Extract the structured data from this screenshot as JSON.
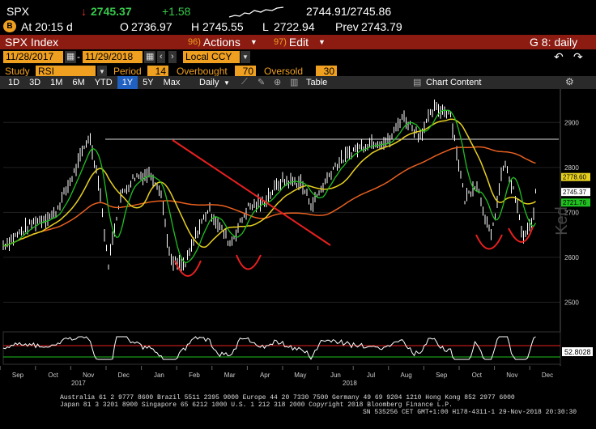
{
  "ticker": {
    "symbol": "SPX",
    "arrow": "↓",
    "last": "2745.37",
    "change": "+1.58",
    "bid_ask": "2744.91/2745.86",
    "time_label": "At 20:15 d",
    "open_label": "O",
    "open": "2736.97",
    "high_label": "H",
    "high": "2745.55",
    "low_label": "L",
    "low": "2722.94",
    "prev_label": "Prev",
    "prev": "2743.79"
  },
  "titlebar": {
    "security": "SPX Index",
    "actions_num": "96)",
    "actions": "Actions",
    "edit_num": "97)",
    "edit": "Edit",
    "page": "G 8: daily"
  },
  "controls": {
    "start_date": "11/28/2017",
    "end_date": "11/29/2018",
    "currency": "Local CCY",
    "study_label": "Study",
    "study": "RSI",
    "period_label": "Period",
    "period": "14",
    "overbought_label": "Overbought",
    "overbought": "70",
    "oversold_label": "Oversold",
    "oversold": "30",
    "table_label": "Table",
    "chart_content": "Chart Content"
  },
  "periods": [
    "1D",
    "3D",
    "1M",
    "6M",
    "YTD",
    "1Y",
    "5Y",
    "Max"
  ],
  "selected_period": "1Y",
  "frequency": "Daily",
  "colors": {
    "price": "#ffffff",
    "ma_short": "#20c020",
    "ma_mid": "#e8d020",
    "ma_long": "#e86020",
    "trend_line": "#e82020",
    "annotation": "#e82020",
    "accent": "#f0a020",
    "titlebar": "#8c1c12"
  },
  "chart_data": {
    "type": "line",
    "x": [
      "2017-11-28",
      "2017-12-08",
      "2017-12-20",
      "2018-01-02",
      "2018-01-10",
      "2018-01-18",
      "2018-01-26",
      "2018-02-02",
      "2018-02-08",
      "2018-02-16",
      "2018-02-26",
      "2018-03-09",
      "2018-03-16",
      "2018-03-23",
      "2018-04-02",
      "2018-04-10",
      "2018-04-18",
      "2018-05-03",
      "2018-05-15",
      "2018-05-25",
      "2018-06-07",
      "2018-06-20",
      "2018-06-28",
      "2018-07-13",
      "2018-07-26",
      "2018-08-08",
      "2018-08-20",
      "2018-08-29",
      "2018-09-10",
      "2018-09-20",
      "2018-10-01",
      "2018-10-11",
      "2018-10-19",
      "2018-10-29",
      "2018-11-07",
      "2018-11-15",
      "2018-11-20",
      "2018-11-26",
      "2018-11-29"
    ],
    "series": [
      {
        "values": [
          2627,
          2651,
          2680,
          2695,
          2748,
          2805,
          2872,
          2762,
          2581,
          2732,
          2779,
          2786,
          2752,
          2588,
          2582,
          2656,
          2708,
          2630,
          2711,
          2721,
          2770,
          2767,
          2716,
          2801,
          2837,
          2857,
          2857,
          2914,
          2871,
          2931,
          2924,
          2728,
          2768,
          2641,
          2813,
          2730,
          2642,
          2673,
          2745
        ]
      }
    ],
    "yticks": [
      "2500",
      "2600",
      "2700",
      "2800",
      "2900"
    ],
    "ylim": [
      2470,
      2960
    ],
    "price_labels": [
      "2778.60",
      "2745.37",
      "2721.76"
    ],
    "xtick_labels": [
      "Sep",
      "Oct",
      "Nov",
      "Dec",
      "Jan",
      "Feb",
      "Mar",
      "Apr",
      "May",
      "Jun",
      "Jul",
      "Aug",
      "Sep",
      "Oct",
      "Nov",
      "Dec"
    ],
    "year_labels": [
      "2017",
      "2018"
    ],
    "rsi_value": "52.8028",
    "watermark": "Ked"
  },
  "footer": {
    "line1": "Australia 61 2 9777 8600 Brazil 5511 2395 9000 Europe 44 20 7330 7500 Germany 49 69 9204 1210 Hong Kong 852 2977 6000",
    "line2": "Japan 81 3 3201 8900         Singapore 65 6212 1000        U.S. 1 212 318 2000             Copyright 2018 Bloomberg Finance L.P.",
    "line3": "SN 535256 CET  GMT+1:00 H178-4311-1 29-Nov-2018 20:30:30"
  }
}
